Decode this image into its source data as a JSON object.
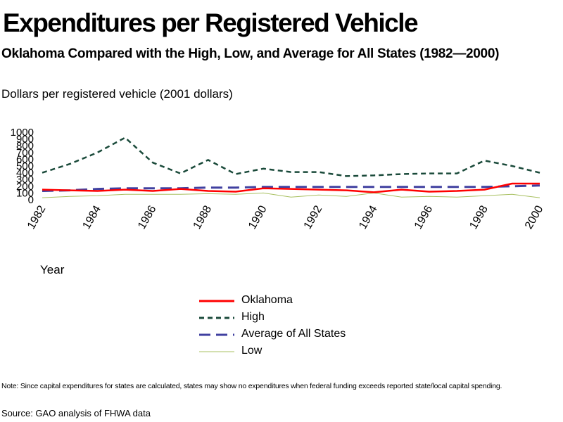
{
  "title": "Expenditures per Registered Vehicle",
  "subtitle": "Oklahoma Compared with the High, Low, and Average for All States (1982—2000)",
  "note": "Note: Since capital expenditures for states are calculated, states may show no expenditures when federal funding exceeds reported state/local capital spending.",
  "source": "Source: GAO analysis of FHWA data",
  "colors": {
    "oklahoma": "#ff0000",
    "high": "#1a4a3a",
    "average": "#4040a0",
    "low": "#a8c060"
  },
  "chart_data": {
    "type": "line",
    "title": "Expenditures per Registered Vehicle",
    "ylabel": "Dollars per registered vehicle (2001 dollars)",
    "xlabel": "Year",
    "x": [
      1982,
      1983,
      1984,
      1985,
      1986,
      1987,
      1988,
      1989,
      1990,
      1991,
      1992,
      1993,
      1994,
      1995,
      1996,
      1997,
      1998,
      1999,
      2000
    ],
    "xticks": [
      "1982",
      "1984",
      "1986",
      "1988",
      "1990",
      "1992",
      "1994",
      "1996",
      "1998",
      "2000"
    ],
    "yticks": [
      "0",
      "100",
      "200",
      "300",
      "400",
      "500",
      "600",
      "700",
      "800",
      "900",
      "1000"
    ],
    "ylim": [
      0,
      1000
    ],
    "grid": false,
    "legend_position": "bottom",
    "series": [
      {
        "name": "Oklahoma",
        "key": "oklahoma",
        "style": "solid",
        "values": [
          150,
          140,
          130,
          150,
          130,
          160,
          130,
          120,
          170,
          160,
          150,
          140,
          110,
          150,
          120,
          130,
          150,
          240,
          240
        ]
      },
      {
        "name": "High",
        "key": "high",
        "style": "dotted",
        "values": [
          400,
          530,
          700,
          920,
          550,
          390,
          590,
          380,
          460,
          410,
          410,
          350,
          360,
          380,
          390,
          390,
          580,
          500,
          400
        ]
      },
      {
        "name": "Average of All States",
        "key": "average",
        "style": "dashed",
        "values": [
          130,
          140,
          160,
          170,
          170,
          170,
          180,
          180,
          190,
          190,
          190,
          190,
          190,
          190,
          190,
          190,
          190,
          200,
          210
        ]
      },
      {
        "name": "Low",
        "key": "low",
        "style": "thin",
        "values": [
          30,
          50,
          60,
          80,
          80,
          80,
          90,
          80,
          100,
          40,
          70,
          50,
          100,
          40,
          50,
          40,
          60,
          80,
          30
        ]
      }
    ]
  }
}
